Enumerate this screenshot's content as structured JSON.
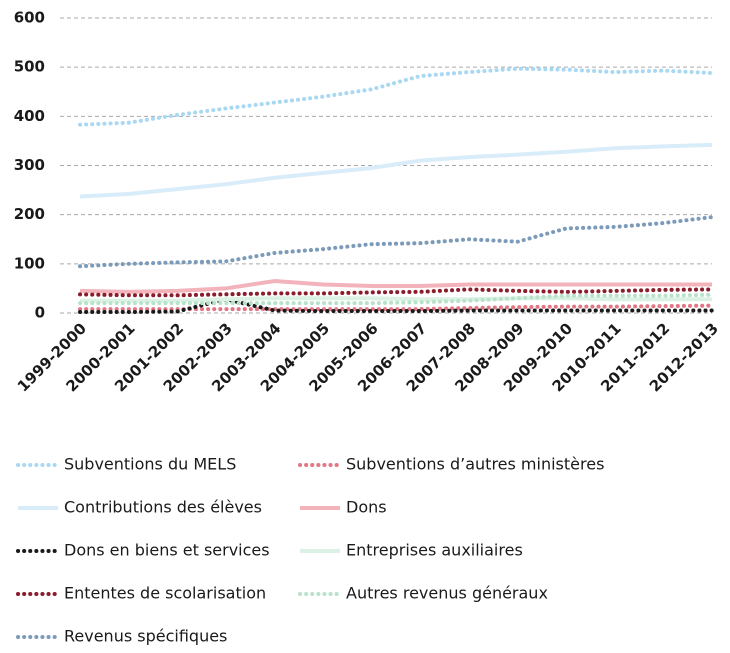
{
  "chart_data": {
    "type": "line",
    "categories": [
      "1999-2000",
      "2000-2001",
      "2001-2002",
      "2002-2003",
      "2003-2004",
      "2004-2005",
      "2005-2006",
      "2006-2007",
      "2007-2008",
      "2008-2009",
      "2009-2010",
      "2010-2011",
      "2011-2012",
      "2012-2013"
    ],
    "ylim": [
      0,
      600
    ],
    "yticks": [
      0,
      100,
      200,
      300,
      400,
      500,
      600
    ],
    "grid": true,
    "series": [
      {
        "name": "Subventions du MELS",
        "color": "#a9d8f2",
        "style": "dotted",
        "values": [
          383,
          387,
          403,
          416,
          428,
          440,
          455,
          482,
          490,
          497,
          495,
          490,
          493,
          488
        ]
      },
      {
        "name": "Subventions d’autres ministères",
        "color": "#e37684",
        "style": "dotted",
        "values": [
          8,
          8,
          8,
          8,
          8,
          8,
          8,
          8,
          10,
          12,
          13,
          13,
          14,
          15
        ]
      },
      {
        "name": "Contributions des élèves",
        "color": "#d9ecfa",
        "style": "solid",
        "values": [
          237,
          242,
          252,
          262,
          275,
          285,
          295,
          310,
          317,
          322,
          328,
          335,
          339,
          342
        ]
      },
      {
        "name": "Dons",
        "color": "#f2b3bb",
        "style": "solid",
        "values": [
          45,
          43,
          45,
          50,
          65,
          58,
          55,
          55,
          58,
          58,
          58,
          58,
          58,
          58
        ]
      },
      {
        "name": "Dons en biens et services",
        "color": "#1a1a1a",
        "style": "dotted",
        "values": [
          2,
          2,
          3,
          28,
          5,
          4,
          4,
          4,
          5,
          5,
          5,
          5,
          5,
          5
        ]
      },
      {
        "name": "Entreprises auxiliaires",
        "color": "#dbf1e3",
        "style": "solid",
        "values": [
          25,
          25,
          25,
          28,
          30,
          30,
          30,
          28,
          28,
          30,
          30,
          28,
          28,
          28
        ]
      },
      {
        "name": "Ententes de scolarisation",
        "color": "#8a1c2c",
        "style": "dotted",
        "values": [
          38,
          36,
          36,
          38,
          40,
          40,
          42,
          43,
          48,
          45,
          43,
          45,
          47,
          48
        ]
      },
      {
        "name": "Autres revenus généraux",
        "color": "#b9e2ca",
        "style": "dotted",
        "values": [
          20,
          20,
          20,
          20,
          20,
          20,
          20,
          22,
          25,
          30,
          35,
          35,
          35,
          37
        ]
      },
      {
        "name": "Revenus spécifiques",
        "color": "#7b9bb9",
        "style": "dotted",
        "values": [
          95,
          100,
          103,
          105,
          122,
          130,
          140,
          142,
          150,
          145,
          172,
          175,
          183,
          195
        ]
      }
    ]
  }
}
